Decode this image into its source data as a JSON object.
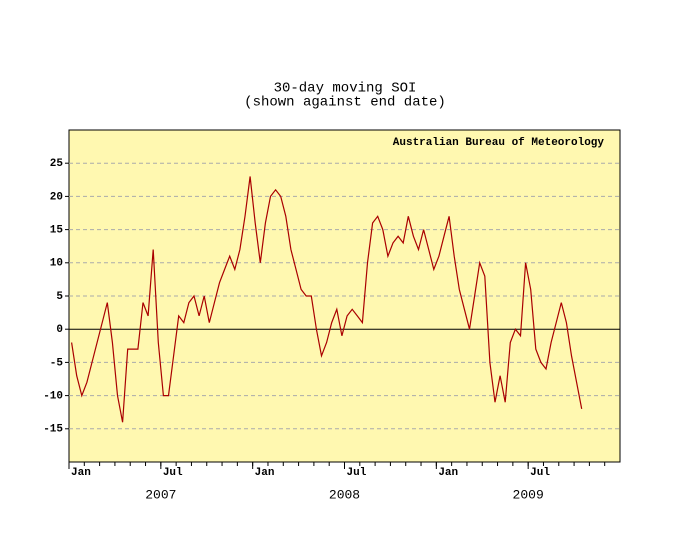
{
  "chart_data": {
    "type": "line",
    "title": "30-day moving SOI",
    "subtitle": "(shown against end date)",
    "annotation": "Australian Bureau of Meteorology",
    "x": [
      "2007-01",
      "2007-01",
      "2007-01",
      "2007-02",
      "2007-02",
      "2007-02",
      "2007-03",
      "2007-03",
      "2007-03",
      "2007-04",
      "2007-04",
      "2007-04",
      "2007-05",
      "2007-05",
      "2007-05",
      "2007-06",
      "2007-06",
      "2007-06",
      "2007-07",
      "2007-07",
      "2007-07",
      "2007-08",
      "2007-08",
      "2007-08",
      "2007-09",
      "2007-09",
      "2007-09",
      "2007-10",
      "2007-10",
      "2007-10",
      "2007-11",
      "2007-11",
      "2007-11",
      "2007-12",
      "2007-12",
      "2007-12",
      "2008-01",
      "2008-01",
      "2008-01",
      "2008-02",
      "2008-02",
      "2008-02",
      "2008-03",
      "2008-03",
      "2008-03",
      "2008-04",
      "2008-04",
      "2008-04",
      "2008-05",
      "2008-05",
      "2008-05",
      "2008-06",
      "2008-06",
      "2008-06",
      "2008-07",
      "2008-07",
      "2008-07",
      "2008-08",
      "2008-08",
      "2008-08",
      "2008-09",
      "2008-09",
      "2008-09",
      "2008-10",
      "2008-10",
      "2008-10",
      "2008-11",
      "2008-11",
      "2008-11",
      "2008-12",
      "2008-12",
      "2008-12",
      "2009-01",
      "2009-01",
      "2009-01",
      "2009-02",
      "2009-02",
      "2009-02",
      "2009-03",
      "2009-03",
      "2009-03",
      "2009-04",
      "2009-04",
      "2009-04",
      "2009-05",
      "2009-05",
      "2009-05",
      "2009-06",
      "2009-06",
      "2009-06",
      "2009-07",
      "2009-07",
      "2009-07",
      "2009-08",
      "2009-08",
      "2009-08",
      "2009-09",
      "2009-09",
      "2009-09",
      "2009-10"
    ],
    "series": [
      {
        "name": "SOI",
        "color": "#aa0000",
        "values": [
          -2,
          -7,
          -10,
          -8,
          -5,
          -2,
          1,
          4,
          -2,
          -10,
          -14,
          -3,
          -3,
          -3,
          4,
          2,
          12,
          -2,
          -10,
          -10,
          -4,
          2,
          1,
          4,
          5,
          2,
          5,
          1,
          4,
          7,
          9,
          11,
          9,
          12,
          17,
          23,
          16,
          10,
          16,
          20,
          21,
          20,
          17,
          12,
          9,
          6,
          5,
          5,
          0,
          -4,
          -2,
          1,
          3,
          -1,
          2,
          3,
          2,
          1,
          10,
          16,
          17,
          15,
          11,
          13,
          14,
          13,
          17,
          14,
          12,
          15,
          12,
          9,
          11,
          14,
          17,
          11,
          6,
          3,
          0,
          5,
          10,
          8,
          -5,
          -11,
          -7,
          -11,
          -2,
          0,
          -1,
          10,
          6,
          -3,
          -5,
          -6,
          -2,
          1,
          4,
          1,
          -4,
          -12
        ]
      }
    ],
    "xlim": [
      "2007-01",
      "2009-12"
    ],
    "xticks": [
      {
        "value": "2007-01",
        "label": "Jan"
      },
      {
        "value": "2007-07",
        "label": "Jul"
      },
      {
        "value": "2008-01",
        "label": "Jan"
      },
      {
        "value": "2008-07",
        "label": "Jul"
      },
      {
        "value": "2009-01",
        "label": "Jan"
      },
      {
        "value": "2009-07",
        "label": "Jul"
      }
    ],
    "year_labels": [
      "2007",
      "2008",
      "2009"
    ],
    "ylim": [
      -20,
      30
    ],
    "yticks": [
      -15,
      -10,
      -5,
      0,
      5,
      10,
      15,
      20,
      25
    ],
    "grid": true
  }
}
